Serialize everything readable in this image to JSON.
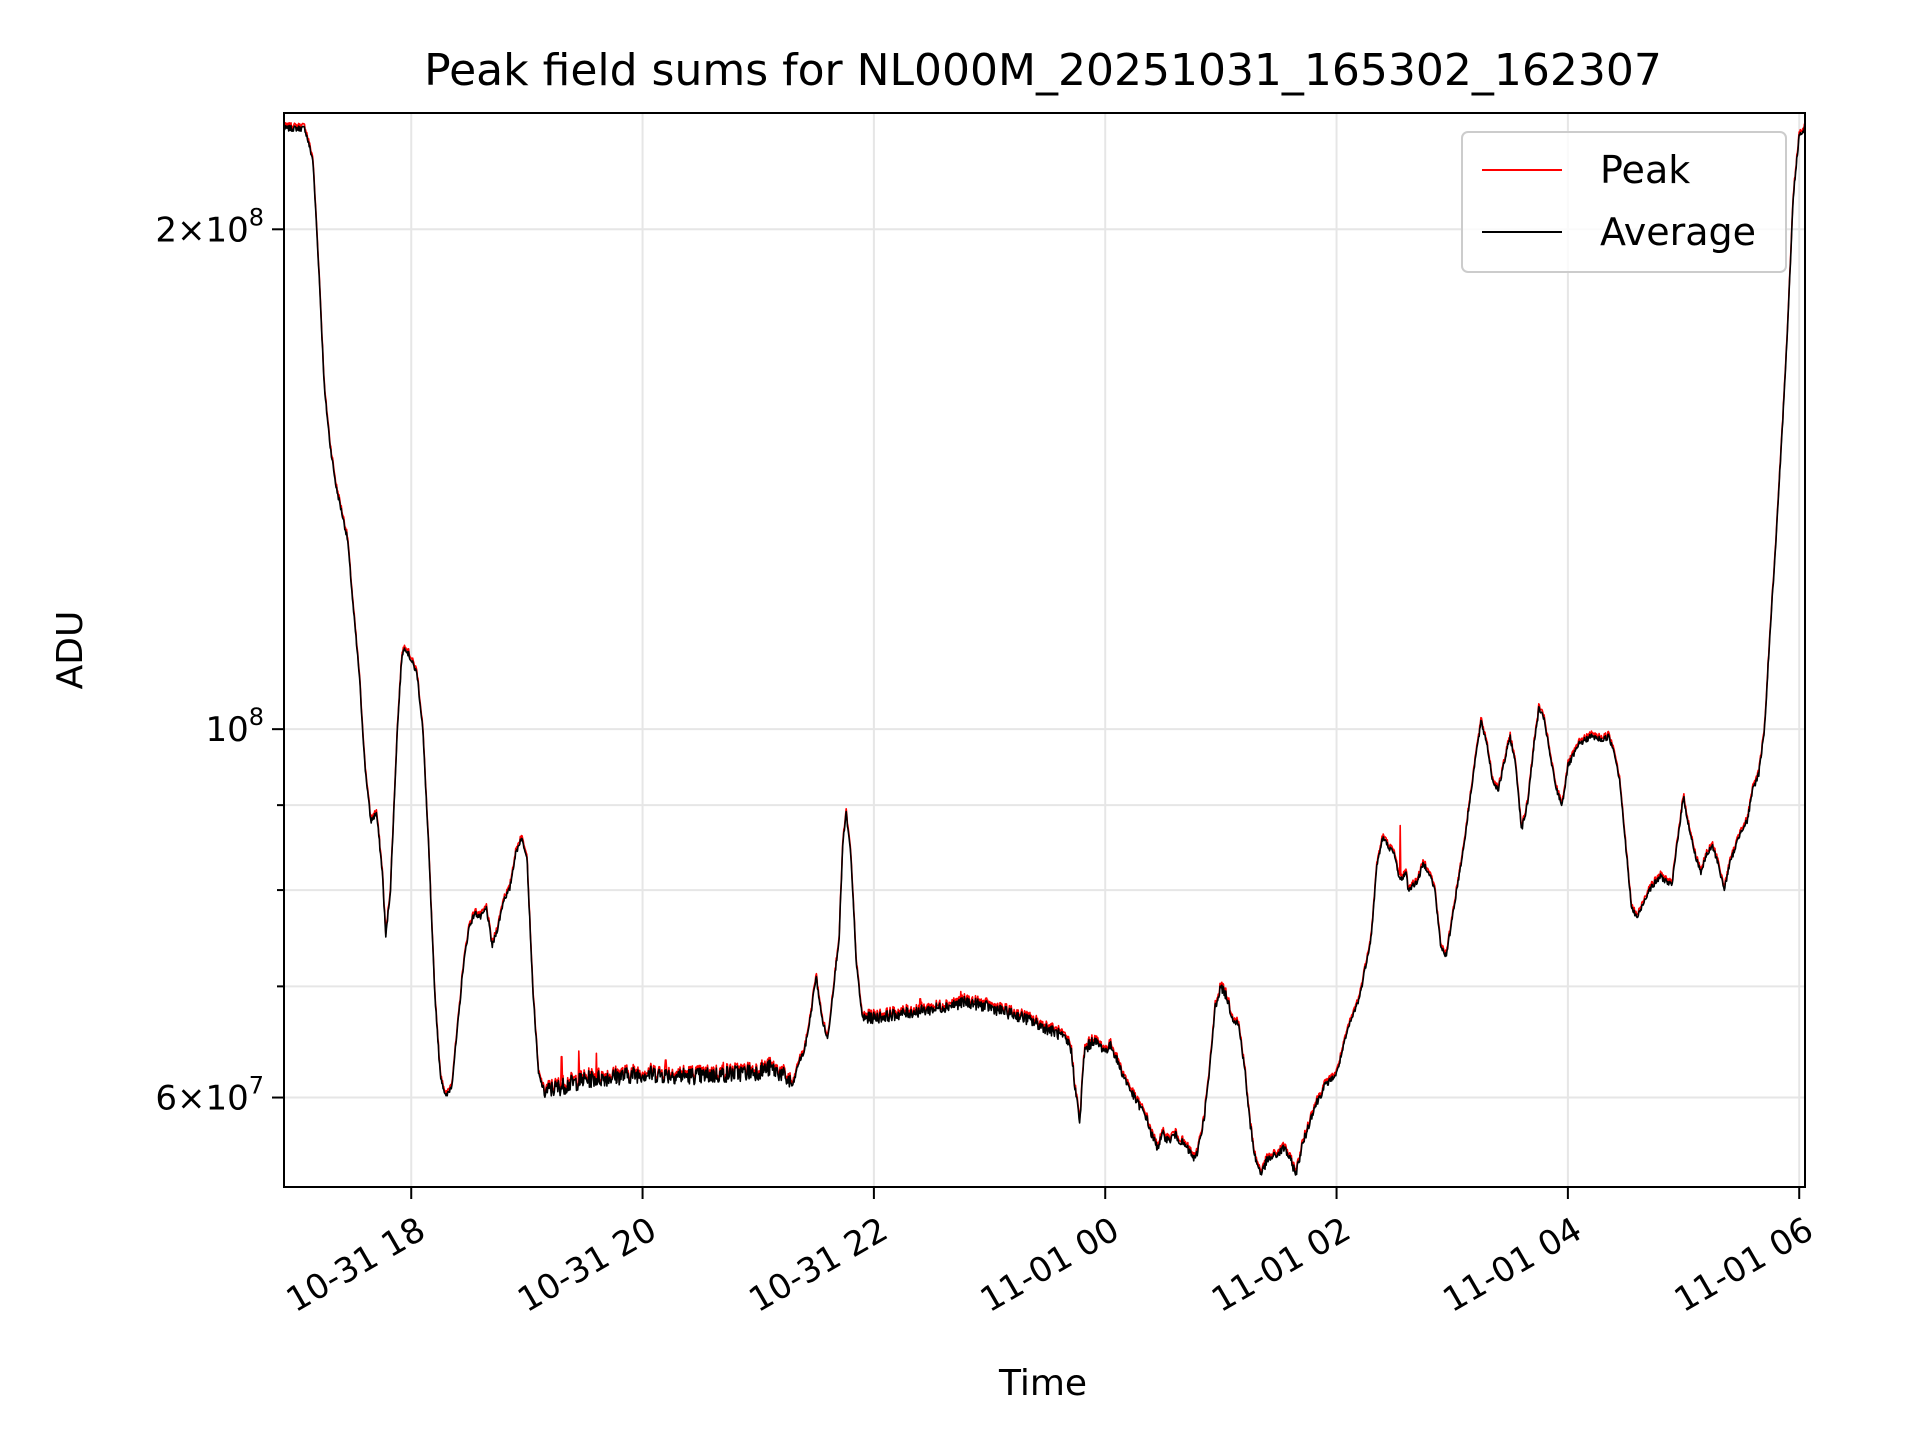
{
  "chart_data": {
    "type": "line",
    "title": "Peak field sums for NL000M_20251031_165302_162307",
    "xlabel": "Time",
    "ylabel": "ADU",
    "yscale": "log",
    "ylim": [
      53000000,
      235000000
    ],
    "xlim_hours": [
      -1.1,
      12.05
    ],
    "grid": true,
    "legend_position": "upper right",
    "x_ticks": [
      {
        "h": 0,
        "label": "10-31 18"
      },
      {
        "h": 2,
        "label": "10-31 20"
      },
      {
        "h": 4,
        "label": "10-31 22"
      },
      {
        "h": 6,
        "label": "11-01 00"
      },
      {
        "h": 8,
        "label": "11-01 02"
      },
      {
        "h": 10,
        "label": "11-01 04"
      },
      {
        "h": 12,
        "label": "11-01 06"
      }
    ],
    "y_ticks": [
      {
        "value": 60000000,
        "base": "6",
        "exp": "7"
      },
      {
        "value": 100000000,
        "base": "",
        "exp": "8"
      },
      {
        "value": 200000000,
        "base": "2",
        "exp": "8"
      }
    ],
    "y_minor_ticks": [
      70000000,
      80000000,
      90000000
    ],
    "series": [
      {
        "name": "Peak",
        "color": "#ff0000",
        "offset": 0.004
      },
      {
        "name": "Average",
        "color": "#000000",
        "offset": 0
      }
    ],
    "base_curve": [
      [
        -1.1,
        230000000
      ],
      [
        -0.92,
        230000000
      ],
      [
        -0.85,
        220000000
      ],
      [
        -0.8,
        190000000
      ],
      [
        -0.75,
        160000000
      ],
      [
        -0.7,
        148000000
      ],
      [
        -0.65,
        140000000
      ],
      [
        -0.6,
        135000000
      ],
      [
        -0.55,
        130000000
      ],
      [
        -0.5,
        118000000
      ],
      [
        -0.45,
        108000000
      ],
      [
        -0.4,
        95000000
      ],
      [
        -0.35,
        88000000
      ],
      [
        -0.3,
        89000000
      ],
      [
        -0.25,
        82000000
      ],
      [
        -0.22,
        75000000
      ],
      [
        -0.18,
        80000000
      ],
      [
        -0.12,
        100000000
      ],
      [
        -0.08,
        111000000
      ],
      [
        -0.05,
        112000000
      ],
      [
        0.0,
        110000000
      ],
      [
        0.05,
        108000000
      ],
      [
        0.1,
        100000000
      ],
      [
        0.15,
        85000000
      ],
      [
        0.2,
        70000000
      ],
      [
        0.25,
        62000000
      ],
      [
        0.3,
        60000000
      ],
      [
        0.35,
        61000000
      ],
      [
        0.4,
        66000000
      ],
      [
        0.45,
        72000000
      ],
      [
        0.5,
        76000000
      ],
      [
        0.55,
        77500000
      ],
      [
        0.6,
        77000000
      ],
      [
        0.65,
        78000000
      ],
      [
        0.7,
        74000000
      ],
      [
        0.75,
        76000000
      ],
      [
        0.8,
        79000000
      ],
      [
        0.85,
        80000000
      ],
      [
        0.9,
        84000000
      ],
      [
        0.95,
        86000000
      ],
      [
        1.0,
        84000000
      ],
      [
        1.05,
        70000000
      ],
      [
        1.1,
        62000000
      ],
      [
        1.15,
        60500000
      ],
      [
        1.5,
        61500000
      ],
      [
        2.0,
        62000000
      ],
      [
        2.5,
        61800000
      ],
      [
        3.0,
        62200000
      ],
      [
        3.1,
        62500000
      ],
      [
        3.2,
        62000000
      ],
      [
        3.3,
        61000000
      ],
      [
        3.35,
        63000000
      ],
      [
        3.4,
        64000000
      ],
      [
        3.45,
        67000000
      ],
      [
        3.5,
        71000000
      ],
      [
        3.55,
        67000000
      ],
      [
        3.6,
        65000000
      ],
      [
        3.7,
        75000000
      ],
      [
        3.73,
        85000000
      ],
      [
        3.76,
        89000000
      ],
      [
        3.8,
        84000000
      ],
      [
        3.85,
        72000000
      ],
      [
        3.9,
        67000000
      ],
      [
        4.0,
        67000000
      ],
      [
        4.5,
        67800000
      ],
      [
        4.8,
        68500000
      ],
      [
        5.0,
        68000000
      ],
      [
        5.3,
        67000000
      ],
      [
        5.6,
        65500000
      ],
      [
        5.7,
        64500000
      ],
      [
        5.75,
        60000000
      ],
      [
        5.78,
        58000000
      ],
      [
        5.82,
        64000000
      ],
      [
        5.9,
        65000000
      ],
      [
        6.0,
        64000000
      ],
      [
        6.05,
        64500000
      ],
      [
        6.15,
        62000000
      ],
      [
        6.25,
        60000000
      ],
      [
        6.35,
        58500000
      ],
      [
        6.4,
        57000000
      ],
      [
        6.45,
        56000000
      ],
      [
        6.5,
        57000000
      ],
      [
        6.55,
        56500000
      ],
      [
        6.6,
        57000000
      ],
      [
        6.7,
        56000000
      ],
      [
        6.78,
        55000000
      ],
      [
        6.85,
        58000000
      ],
      [
        6.9,
        62000000
      ],
      [
        6.95,
        68000000
      ],
      [
        7.0,
        70000000
      ],
      [
        7.05,
        69000000
      ],
      [
        7.1,
        67000000
      ],
      [
        7.15,
        66500000
      ],
      [
        7.2,
        63000000
      ],
      [
        7.25,
        58000000
      ],
      [
        7.3,
        55000000
      ],
      [
        7.35,
        54000000
      ],
      [
        7.4,
        55000000
      ],
      [
        7.5,
        55500000
      ],
      [
        7.55,
        56000000
      ],
      [
        7.6,
        55000000
      ],
      [
        7.65,
        54000000
      ],
      [
        7.7,
        56000000
      ],
      [
        7.8,
        59000000
      ],
      [
        7.9,
        61000000
      ],
      [
        8.0,
        62000000
      ],
      [
        8.1,
        66000000
      ],
      [
        8.2,
        69000000
      ],
      [
        8.3,
        75000000
      ],
      [
        8.35,
        83000000
      ],
      [
        8.4,
        86000000
      ],
      [
        8.5,
        84000000
      ],
      [
        8.55,
        81000000
      ],
      [
        8.6,
        82000000
      ],
      [
        8.62,
        80000000
      ],
      [
        8.7,
        81000000
      ],
      [
        8.75,
        83000000
      ],
      [
        8.8,
        82000000
      ],
      [
        8.85,
        80000000
      ],
      [
        8.9,
        74000000
      ],
      [
        8.95,
        73000000
      ],
      [
        9.0,
        77000000
      ],
      [
        9.1,
        85000000
      ],
      [
        9.2,
        96000000
      ],
      [
        9.25,
        101000000
      ],
      [
        9.3,
        98000000
      ],
      [
        9.35,
        93000000
      ],
      [
        9.4,
        92000000
      ],
      [
        9.5,
        99000000
      ],
      [
        9.55,
        95000000
      ],
      [
        9.6,
        87000000
      ],
      [
        9.65,
        90000000
      ],
      [
        9.7,
        97000000
      ],
      [
        9.75,
        103000000
      ],
      [
        9.8,
        101000000
      ],
      [
        9.85,
        96000000
      ],
      [
        9.9,
        92000000
      ],
      [
        9.95,
        90000000
      ],
      [
        10.0,
        95000000
      ],
      [
        10.1,
        98000000
      ],
      [
        10.2,
        99000000
      ],
      [
        10.3,
        98500000
      ],
      [
        10.35,
        99000000
      ],
      [
        10.4,
        97000000
      ],
      [
        10.45,
        93000000
      ],
      [
        10.5,
        85000000
      ],
      [
        10.55,
        78000000
      ],
      [
        10.6,
        77000000
      ],
      [
        10.7,
        80000000
      ],
      [
        10.8,
        81500000
      ],
      [
        10.9,
        80500000
      ],
      [
        10.95,
        86000000
      ],
      [
        11.0,
        91000000
      ],
      [
        11.05,
        87000000
      ],
      [
        11.1,
        84000000
      ],
      [
        11.15,
        82000000
      ],
      [
        11.2,
        84000000
      ],
      [
        11.25,
        85000000
      ],
      [
        11.3,
        83000000
      ],
      [
        11.35,
        80000000
      ],
      [
        11.4,
        83000000
      ],
      [
        11.5,
        87000000
      ],
      [
        11.55,
        88000000
      ],
      [
        11.6,
        92000000
      ],
      [
        11.65,
        94000000
      ],
      [
        11.7,
        100000000
      ],
      [
        11.75,
        115000000
      ],
      [
        11.8,
        130000000
      ],
      [
        11.85,
        150000000
      ],
      [
        11.9,
        175000000
      ],
      [
        11.95,
        210000000
      ],
      [
        12.0,
        228000000
      ],
      [
        12.05,
        230000000
      ]
    ],
    "noise_segments": [
      [
        1.15,
        3.3,
        0.012
      ],
      [
        3.9,
        5.9,
        0.008
      ],
      [
        5.9,
        7.9,
        0.006
      ]
    ],
    "peak_spikes": [
      [
        1.3,
        63500000
      ],
      [
        1.45,
        64000000
      ],
      [
        1.6,
        63800000
      ],
      [
        2.2,
        63200000
      ],
      [
        2.7,
        63000000
      ],
      [
        4.4,
        68800000
      ],
      [
        4.75,
        69500000
      ],
      [
        8.55,
        87500000
      ]
    ]
  }
}
